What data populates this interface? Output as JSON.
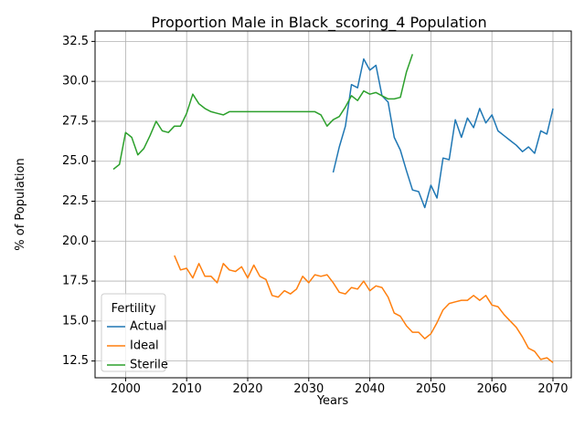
{
  "chart_data": {
    "type": "line",
    "title": "Proportion Male in Black_scoring_4 Population",
    "xlabel": "Years",
    "ylabel": "% of Population",
    "xlim": [
      1995,
      2073
    ],
    "ylim": [
      11.45,
      33.15
    ],
    "xticks": [
      2000,
      2010,
      2020,
      2030,
      2040,
      2050,
      2060,
      2070
    ],
    "yticks": [
      12.5,
      15.0,
      17.5,
      20.0,
      22.5,
      25.0,
      27.5,
      30.0,
      32.5
    ],
    "ytick_labels": [
      "12.5",
      "15.0",
      "17.5",
      "20.0",
      "22.5",
      "25.0",
      "27.5",
      "30.0",
      "32.5"
    ],
    "grid": true,
    "legend": {
      "title": "Fertility",
      "placement": "lower-left"
    },
    "series": [
      {
        "name": "Actual",
        "color": "#1f77b4",
        "x": [
          2034,
          2035,
          2036,
          2037,
          2038,
          2039,
          2040,
          2041,
          2042,
          2043,
          2044,
          2045,
          2046,
          2047,
          2048,
          2049,
          2050,
          2051,
          2052,
          2053,
          2054,
          2055,
          2056,
          2057,
          2058,
          2059,
          2060,
          2061,
          2062,
          2063,
          2064,
          2065,
          2066,
          2067,
          2068,
          2069,
          2070
        ],
        "y": [
          24.3,
          25.9,
          27.2,
          29.8,
          29.6,
          31.4,
          30.7,
          31.0,
          29.1,
          28.7,
          26.5,
          25.7,
          24.4,
          23.2,
          23.1,
          22.1,
          23.5,
          22.7,
          25.2,
          25.1,
          27.6,
          26.5,
          27.7,
          27.1,
          28.3,
          27.4,
          27.9,
          26.9,
          26.6,
          26.3,
          26.0,
          25.6,
          25.9,
          25.5,
          26.9,
          26.7,
          28.3
        ]
      },
      {
        "name": "Ideal",
        "color": "#ff7f0e",
        "x": [
          2008,
          2009,
          2010,
          2011,
          2012,
          2013,
          2014,
          2015,
          2016,
          2017,
          2018,
          2019,
          2020,
          2021,
          2022,
          2023,
          2024,
          2025,
          2026,
          2027,
          2028,
          2029,
          2030,
          2031,
          2032,
          2033,
          2034,
          2035,
          2036,
          2037,
          2038,
          2039,
          2040,
          2041,
          2042,
          2043,
          2044,
          2045,
          2046,
          2047,
          2048,
          2049,
          2050,
          2051,
          2052,
          2053,
          2054,
          2055,
          2056,
          2057,
          2058,
          2059,
          2060,
          2061,
          2062,
          2063,
          2064,
          2065,
          2066,
          2067,
          2068,
          2069,
          2070
        ],
        "y": [
          19.1,
          18.2,
          18.3,
          17.7,
          18.6,
          17.8,
          17.8,
          17.4,
          18.6,
          18.2,
          18.1,
          18.4,
          17.7,
          18.5,
          17.8,
          17.6,
          16.6,
          16.5,
          16.9,
          16.7,
          17.0,
          17.8,
          17.4,
          17.9,
          17.8,
          17.9,
          17.4,
          16.8,
          16.7,
          17.1,
          17.0,
          17.5,
          16.9,
          17.2,
          17.1,
          16.5,
          15.5,
          15.3,
          14.7,
          14.3,
          14.3,
          13.9,
          14.2,
          14.9,
          15.7,
          16.1,
          16.2,
          16.3,
          16.3,
          16.6,
          16.3,
          16.6,
          16.0,
          15.9,
          15.4,
          15.0,
          14.6,
          14.0,
          13.3,
          13.1,
          12.6,
          12.7,
          12.4
        ]
      },
      {
        "name": "Sterile",
        "color": "#2ca02c",
        "x": [
          1998,
          1999,
          2000,
          2001,
          2002,
          2003,
          2004,
          2005,
          2006,
          2007,
          2008,
          2009,
          2010,
          2011,
          2012,
          2013,
          2014,
          2015,
          2016,
          2017,
          2018,
          2019,
          2020,
          2021,
          2022,
          2023,
          2024,
          2025,
          2026,
          2027,
          2028,
          2029,
          2030,
          2031,
          2032,
          2033,
          2034,
          2035,
          2036,
          2037,
          2038,
          2039,
          2040,
          2041,
          2042,
          2043,
          2044,
          2045,
          2046,
          2047
        ],
        "y": [
          24.5,
          24.8,
          26.8,
          26.5,
          25.4,
          25.8,
          26.6,
          27.5,
          26.9,
          26.8,
          27.2,
          27.2,
          28.0,
          29.2,
          28.6,
          28.3,
          28.1,
          28.0,
          27.9,
          28.1,
          28.1,
          28.1,
          28.1,
          28.1,
          28.1,
          28.1,
          28.1,
          28.1,
          28.1,
          28.1,
          28.1,
          28.1,
          28.1,
          28.1,
          27.9,
          27.2,
          27.6,
          27.8,
          28.4,
          29.1,
          28.8,
          29.4,
          29.2,
          29.3,
          29.1,
          28.9,
          28.9,
          29.0,
          30.6,
          31.7
        ]
      }
    ]
  }
}
